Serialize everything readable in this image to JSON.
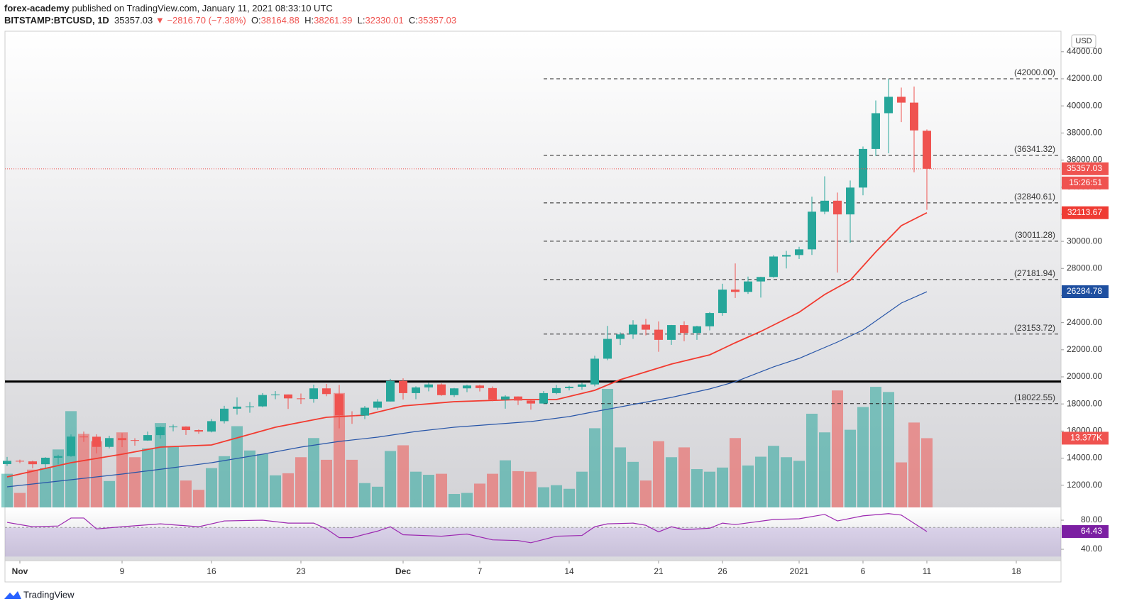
{
  "header": {
    "author": "forex-academy",
    "published": "published on TradingView.com, January 11, 2021 08:33:10 UTC",
    "symbol": "BITSTAMP:BTCUSD, 1D",
    "change": "▼ −2816.70 (−7.38%)",
    "ohlc_keys": [
      "O:",
      "H:",
      "L:",
      "C:"
    ]
  },
  "footer": {
    "brand": "TradingView"
  },
  "chart_data": {
    "type": "candlestick",
    "currency": "USD",
    "x": [
      -1,
      0,
      1,
      2,
      3,
      4,
      5,
      6,
      7,
      8,
      9,
      10,
      11,
      12,
      13,
      14,
      15,
      16,
      17,
      18,
      19,
      20,
      21,
      22,
      23,
      24,
      25,
      26,
      27,
      28,
      29,
      30,
      31,
      32,
      33,
      34,
      35,
      36,
      37,
      38,
      39,
      40,
      41,
      42,
      43,
      44,
      45,
      46,
      47,
      48,
      49,
      50,
      51,
      52,
      53,
      54,
      55,
      56,
      57,
      58,
      59,
      60,
      61,
      62,
      63,
      64,
      65,
      66,
      67,
      68,
      69,
      70,
      71
    ],
    "open": [
      13560,
      13800,
      13760,
      13550,
      14030,
      14150,
      15590,
      15580,
      14830,
      15480,
      15330,
      15300,
      15700,
      16290,
      16330,
      16070,
      15960,
      16730,
      17650,
      17800,
      17820,
      18660,
      18700,
      18410,
      18370,
      19150,
      18730,
      17150,
      17140,
      17720,
      18180,
      19700,
      18800,
      19220,
      19440,
      18650,
      19150,
      19360,
      19170,
      18320,
      18550,
      18250,
      18030,
      18800,
      19170,
      19270,
      19440,
      21340,
      22800,
      23130,
      23850,
      23480,
      22730,
      23820,
      23240,
      23730,
      24710,
      26440,
      26270,
      27040,
      27370,
      28880,
      28990,
      29410,
      32190,
      33000,
      31990,
      33970,
      36820,
      39460,
      40670,
      40240,
      38164.88
    ],
    "high": [
      14090,
      13890,
      13820,
      14070,
      14250,
      15750,
      15960,
      15760,
      15650,
      15840,
      15470,
      15960,
      16340,
      16480,
      16350,
      16120,
      16890,
      17860,
      18480,
      18140,
      18800,
      18950,
      18700,
      18770,
      19420,
      19480,
      19400,
      17460,
      17850,
      18350,
      19850,
      19890,
      19300,
      19570,
      19520,
      19180,
      19420,
      19420,
      19290,
      18640,
      18560,
      18270,
      18950,
      19400,
      19340,
      19560,
      21560,
      23760,
      23280,
      24180,
      24280,
      24090,
      23830,
      24100,
      23770,
      24780,
      26870,
      28370,
      27400,
      27390,
      28990,
      29300,
      29600,
      33300,
      34800,
      33600,
      34490,
      37000,
      40400,
      42000,
      41350,
      41430,
      38261.39
    ],
    "low": [
      13430,
      13630,
      13250,
      13290,
      13530,
      14100,
      15200,
      14350,
      14720,
      14810,
      14920,
      15280,
      15440,
      15980,
      15710,
      15800,
      15900,
      16560,
      17210,
      17350,
      17760,
      18350,
      17630,
      18000,
      18090,
      18570,
      16200,
      16530,
      16880,
      17570,
      18180,
      18330,
      18350,
      18930,
      18600,
      18510,
      18870,
      18920,
      18200,
      17650,
      17920,
      17580,
      17990,
      18720,
      19000,
      19050,
      19300,
      21230,
      22350,
      22800,
      23060,
      21850,
      22360,
      22630,
      22730,
      23430,
      24510,
      25820,
      26120,
      25850,
      27320,
      28000,
      28700,
      29000,
      32000,
      27700,
      29900,
      33400,
      36300,
      36500,
      38800,
      35100,
      32330.01
    ],
    "close": [
      13800,
      13760,
      13550,
      14030,
      14150,
      15590,
      15580,
      14830,
      15480,
      15330,
      15300,
      15700,
      16290,
      16330,
      16070,
      15960,
      16730,
      17650,
      17800,
      17820,
      18660,
      18700,
      18410,
      18370,
      19150,
      18730,
      17150,
      17140,
      17720,
      18180,
      19700,
      18800,
      19220,
      19440,
      18650,
      19150,
      19360,
      19170,
      18320,
      18550,
      18250,
      18030,
      18800,
      19170,
      19270,
      19440,
      21340,
      22800,
      23130,
      23850,
      23480,
      22730,
      23820,
      23240,
      23730,
      24710,
      26440,
      26270,
      27040,
      27370,
      28880,
      28990,
      29410,
      32190,
      33000,
      31990,
      33970,
      36820,
      39460,
      40670,
      40240,
      38190,
      35357.03
    ],
    "up_color": "#26a69a",
    "down_color": "#ef5350",
    "countdown": "15:26:51",
    "xlim": [
      -1.167,
      81.5
    ],
    "xticks": [
      {
        "value": 0,
        "label": "Nov"
      },
      {
        "value": 8,
        "label": "9"
      },
      {
        "value": 15,
        "label": "16"
      },
      {
        "value": 22,
        "label": "23"
      },
      {
        "value": 30,
        "label": "Dec"
      },
      {
        "value": 36,
        "label": "7"
      },
      {
        "value": 43,
        "label": "14"
      },
      {
        "value": 50,
        "label": "21"
      },
      {
        "value": 55,
        "label": "26"
      },
      {
        "value": 61,
        "label": "2021"
      },
      {
        "value": 66,
        "label": "6"
      },
      {
        "value": 71,
        "label": "11"
      },
      {
        "value": 78,
        "label": "18"
      }
    ],
    "ylim": [
      10362,
      45510
    ],
    "yticks": [
      {
        "value": 12000,
        "label": "12000.00"
      },
      {
        "value": 14000,
        "label": "14000.00"
      },
      {
        "value": 16000,
        "label": "16000.00"
      },
      {
        "value": 18000,
        "label": "18000.00"
      },
      {
        "value": 20000,
        "label": "20000.00"
      },
      {
        "value": 22000,
        "label": "22000.00"
      },
      {
        "value": 24000,
        "label": "24000.00"
      },
      {
        "value": 26000,
        "label": "26000.00"
      },
      {
        "value": 28000,
        "label": "28000.00"
      },
      {
        "value": 30000,
        "label": "30000.00"
      },
      {
        "value": 32000,
        "label": "32000.00"
      },
      {
        "value": 34000,
        "label": "34000.00"
      },
      {
        "value": 36000,
        "label": "36000.00"
      },
      {
        "value": 38000,
        "label": "38000.00"
      },
      {
        "value": 40000,
        "label": "40000.00"
      },
      {
        "value": 42000,
        "label": "42000.00"
      },
      {
        "value": 44000,
        "label": "44000.00"
      }
    ],
    "grid": false,
    "levels_start": 41,
    "levels": [
      {
        "value": 42000,
        "label": "(42000.00)"
      },
      {
        "value": 36341.32,
        "label": "(36341.32)"
      },
      {
        "value": 32840.61,
        "label": "(32840.61)"
      },
      {
        "value": 30011.28,
        "label": "(30011.28)"
      },
      {
        "value": 27181.94,
        "label": "(27181.94)"
      },
      {
        "value": 23153.72,
        "label": "(23153.72)"
      },
      {
        "value": 18022.55,
        "label": "(18022.55)"
      }
    ],
    "support_line": 19650,
    "series": [
      {
        "color": "#f23a2f",
        "label_color": "#ef3b33",
        "x": [
          -1,
          4,
          8,
          11,
          15,
          20,
          24,
          27,
          30,
          34,
          39,
          42,
          45,
          47,
          49,
          51,
          54,
          56,
          58,
          61,
          63,
          65,
          67,
          69,
          71
        ],
        "values": [
          12615,
          13662,
          14291,
          14815,
          14972,
          16281,
          17015,
          17172,
          17853,
          18167,
          18324,
          18324,
          19005,
          19791,
          20367,
          20943,
          21624,
          22515,
          23353,
          24767,
          26077,
          27124,
          29219,
          31157,
          32113.67
        ]
      },
      {
        "color": "#2755a8",
        "label_color": "#1e4fa0",
        "x": [
          -1,
          4,
          8,
          12,
          15,
          19,
          22,
          25,
          28,
          31,
          34,
          37,
          40,
          43,
          45,
          48,
          51,
          54,
          56,
          59,
          61,
          64,
          66,
          69,
          71
        ],
        "values": [
          11882,
          12406,
          12825,
          13296,
          13662,
          14291,
          14815,
          15233,
          15548,
          15967,
          16281,
          16490,
          16700,
          17067,
          17434,
          17957,
          18481,
          19110,
          19634,
          20734,
          21362,
          22567,
          23457,
          25448,
          26284.78
        ]
      }
    ],
    "volume": {
      "max": 92,
      "last_label": "13.377K",
      "values": [
        6.5,
        2.8,
        7.3,
        7.6,
        11.2,
        18.6,
        14.2,
        12.8,
        5.1,
        14.5,
        9.7,
        11.4,
        16.3,
        11.7,
        5.2,
        3.4,
        7.6,
        9.9,
        15.7,
        11.0,
        10.3,
        6.2,
        6.6,
        9.7,
        13.4,
        9.2,
        22.1,
        9.2,
        4.7,
        4.0,
        10.9,
        12.0,
        6.9,
        6.3,
        6.5,
        2.6,
        2.8,
        4.6,
        6.5,
        9.1,
        7.0,
        6.9,
        3.9,
        4.3,
        3.6,
        6.9,
        15.3,
        22.9,
        11.6,
        8.8,
        5.2,
        12.8,
        9.7,
        11.6,
        7.4,
        6.9,
        7.7,
        13.4,
        8.1,
        9.8,
        11.9,
        9.7,
        9.0,
        18.1,
        14.5,
        22.6,
        15.0,
        19.4,
        23.3,
        22.3,
        8.7,
        16.4,
        13.377
      ]
    },
    "rsi": {
      "color": "#9c27b0",
      "label_color": "#7b1fa2",
      "ylim": [
        24.4,
        96.6
      ],
      "yticks": [
        {
          "value": 80,
          "label": "80.00"
        },
        {
          "value": 40,
          "label": "40.00"
        }
      ],
      "band": [
        30,
        70
      ],
      "x": [
        -1,
        1,
        3,
        4,
        5,
        6,
        8,
        11,
        14,
        16,
        19,
        21,
        23,
        24,
        25,
        26,
        28,
        29,
        30,
        33,
        35,
        37,
        39,
        40,
        42,
        44,
        45,
        46,
        48,
        49,
        50,
        51,
        52,
        54,
        55,
        56,
        59,
        61,
        63,
        64,
        66,
        68,
        69,
        71
      ],
      "values": [
        77,
        71,
        72,
        83,
        83,
        68,
        71,
        75,
        71,
        79,
        80,
        76,
        76,
        68,
        56,
        56,
        65,
        71,
        60,
        58,
        61,
        53,
        52,
        49,
        58,
        59,
        71,
        75,
        76,
        73,
        64,
        71,
        67,
        69,
        76,
        74,
        81,
        82,
        88,
        79,
        86,
        89,
        87,
        64.43
      ]
    }
  }
}
